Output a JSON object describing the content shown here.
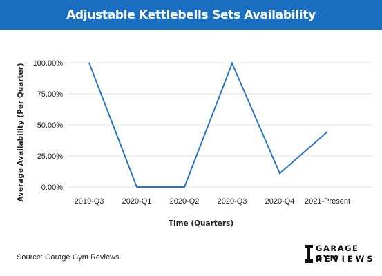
{
  "header": {
    "title": "Adjustable Kettlebells Sets Availability"
  },
  "chart_data": {
    "type": "line",
    "title": "Adjustable Kettlebells Sets Availability",
    "xlabel": "Time (Quarters)",
    "ylabel": "Average Availability (Per Quarter)",
    "categories": [
      "2019-Q3",
      "2020-Q1",
      "2020-Q2",
      "2020-Q3",
      "2020-Q4",
      "2021-Present"
    ],
    "series": [
      {
        "values": [
          100,
          0,
          0,
          99.5,
          11,
          44.5
        ]
      }
    ],
    "yticks": [
      "100.00%",
      "75.00%",
      "50.00%",
      "25.00%",
      "0.00%"
    ],
    "ytick_values": [
      100,
      75,
      50,
      25,
      0
    ],
    "ylim": [
      0,
      100
    ],
    "grid": true,
    "line_color": "#2a74c4"
  },
  "footer": {
    "source": "Source: Garage Gym Reviews",
    "logo_line1": "GARAGE GYM",
    "logo_line2": "REVIEWS"
  }
}
